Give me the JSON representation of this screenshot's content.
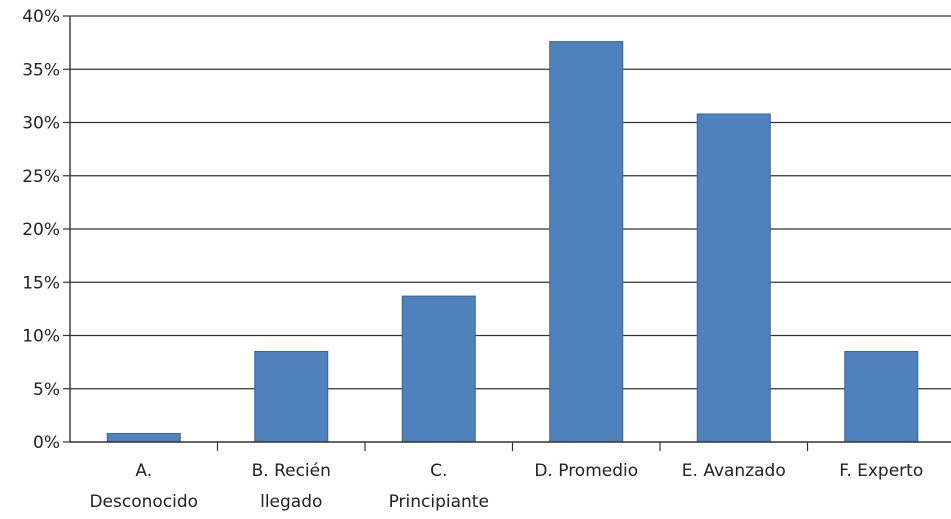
{
  "chart_data": {
    "type": "bar",
    "categories": [
      [
        "A.",
        "Desconocido"
      ],
      [
        "B. Recién",
        "llegado"
      ],
      [
        "C.",
        "Principiante"
      ],
      [
        "D. Promedio"
      ],
      [
        "E. Avanzado"
      ],
      [
        "F. Experto"
      ]
    ],
    "values": [
      0.8,
      8.5,
      13.7,
      37.6,
      30.8,
      8.5
    ],
    "ylim": [
      0,
      40
    ],
    "yticks": [
      "0%",
      "5%",
      "10%",
      "15%",
      "20%",
      "25%",
      "30%",
      "35%",
      "40%"
    ],
    "grid": true,
    "bar_color": "#4f81bd",
    "bar_edge_color": "#3a6496",
    "title": "",
    "xlabel": "",
    "ylabel": ""
  }
}
